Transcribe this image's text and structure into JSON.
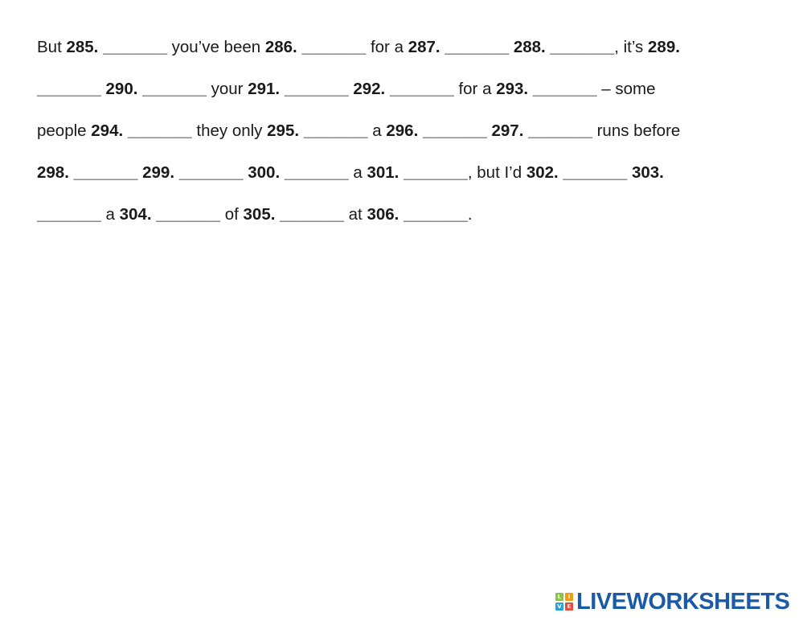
{
  "worksheet": {
    "lines": [
      {
        "seg": [
          "But ",
          "285.",
          " _______",
          " you’ve been ",
          "286.",
          " _______",
          " for a ",
          "287.",
          " _______",
          " ",
          "288.",
          " _______",
          ", it’s ",
          "289."
        ]
      },
      {
        "seg": [
          "_______",
          " ",
          "290.",
          " _______",
          " your ",
          "291.",
          " _______",
          " ",
          "292.",
          " _______",
          " for a ",
          "293.",
          " _______",
          " – some"
        ]
      },
      {
        "seg": [
          "people ",
          "294.",
          " _______",
          " they only ",
          "295.",
          " _______",
          " a ",
          "296.",
          " _______",
          " ",
          "297.",
          " _______",
          " runs before"
        ]
      },
      {
        "seg": [
          "298.",
          " _______",
          " ",
          "299.",
          " _______",
          " ",
          "300.",
          " _______",
          " a ",
          "301.",
          " _______",
          ", but I’d ",
          "302.",
          " _______",
          " ",
          "303."
        ]
      },
      {
        "seg": [
          "_______",
          " a ",
          "304.",
          " _______",
          " of ",
          "305.",
          " _______",
          " at ",
          "306.",
          " _______",
          "."
        ]
      }
    ]
  },
  "footer": {
    "logo_text": "LIVEWORKSHEETS",
    "logo_icon": "liveworksheets-logo-icon",
    "logo_mark_letters": [
      "L",
      "I",
      "V",
      "E"
    ],
    "colors": {
      "brand_blue": "#1b5aa6",
      "mark_green": "#8bc34a",
      "mark_orange": "#f39c12",
      "mark_blue": "#29a3dd",
      "mark_red": "#e74c3c"
    }
  }
}
